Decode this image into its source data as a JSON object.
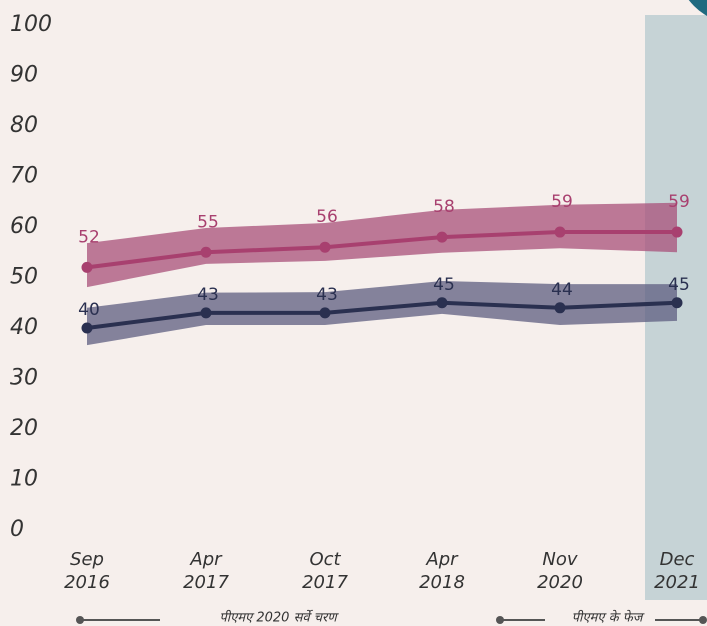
{
  "chart_data": {
    "type": "line",
    "categories": [
      [
        "Sep",
        "2016"
      ],
      [
        "Apr",
        "2017"
      ],
      [
        "Oct",
        "2017"
      ],
      [
        "Apr",
        "2018"
      ],
      [
        "Nov",
        "2020"
      ],
      [
        "Dec",
        "2021"
      ]
    ],
    "series": [
      {
        "color": "#a8406f",
        "band_color": "#a8507a",
        "values": [
          52,
          55,
          56,
          58,
          59,
          59
        ],
        "upper": [
          56.8,
          59.8,
          60.8,
          63.4,
          64.4,
          64.8
        ],
        "lower": [
          48.1,
          52.7,
          53.3,
          54.9,
          55.8,
          55
        ]
      },
      {
        "color": "#2a3050",
        "band_color": "#5e5d80",
        "values": [
          40,
          43,
          43,
          45,
          44,
          45
        ],
        "upper": [
          44,
          47,
          47.1,
          49.3,
          48.7,
          48.7
        ],
        "lower": [
          36.6,
          40.6,
          40.6,
          42.8,
          40.6,
          41.4
        ]
      }
    ],
    "ylim": [
      0,
      100
    ],
    "yticks": [
      0,
      10,
      20,
      30,
      40,
      50,
      60,
      70,
      80,
      90,
      100
    ],
    "phase_labels": [
      "पीएमए 2020 सर्वे चरण",
      "पीएमए के फेज"
    ]
  }
}
